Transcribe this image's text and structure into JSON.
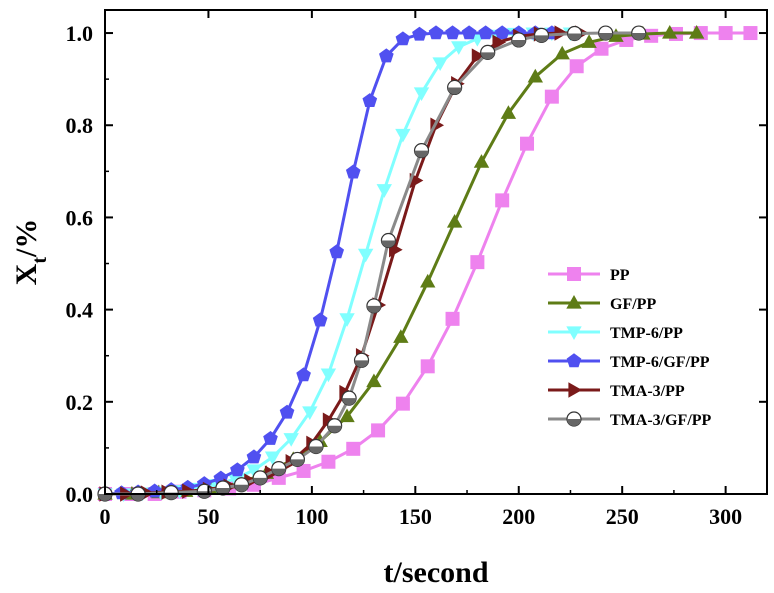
{
  "chart_data": {
    "type": "line",
    "xlabel": "t/second",
    "ylabel_main": "X",
    "ylabel_sub": "t",
    "ylabel_unit": "/%",
    "xlim": [
      0,
      320
    ],
    "ylim": [
      0,
      1.05
    ],
    "xticks": [
      0,
      50,
      100,
      150,
      200,
      250,
      300
    ],
    "xtick_labels": [
      "0",
      "50",
      "100",
      "150",
      "200",
      "250",
      "300"
    ],
    "yticks": [
      0,
      0.2,
      0.4,
      0.6,
      0.8,
      1.0
    ],
    "ytick_labels": [
      "0.0",
      "0.2",
      "0.4",
      "0.6",
      "0.8",
      "1.0"
    ],
    "grid": false,
    "legend_position": "right-bottom",
    "series": [
      {
        "name": "PP",
        "color": "#ee82ee",
        "marker": "square",
        "x": [
          0,
          12,
          24,
          36,
          48,
          60,
          72,
          84,
          96,
          108,
          120,
          132,
          144,
          156,
          168,
          180,
          192,
          204,
          216,
          228,
          240,
          252,
          264,
          276,
          288,
          300,
          312
        ],
        "y": [
          0.0,
          0.0,
          0.0,
          0.005,
          0.008,
          0.012,
          0.02,
          0.035,
          0.05,
          0.07,
          0.098,
          0.138,
          0.196,
          0.277,
          0.38,
          0.503,
          0.637,
          0.76,
          0.862,
          0.928,
          0.966,
          0.985,
          0.994,
          0.998,
          1.0,
          1.0,
          1.0
        ]
      },
      {
        "name": "GF/PP",
        "color": "#5e7c16",
        "marker": "triangle-up",
        "x": [
          0,
          13,
          26,
          39,
          52,
          65,
          78,
          91,
          104,
          117,
          130,
          143,
          156,
          169,
          182,
          195,
          208,
          221,
          234,
          247,
          260,
          273,
          286
        ],
        "y": [
          0.0,
          0.0,
          0.003,
          0.006,
          0.012,
          0.024,
          0.045,
          0.075,
          0.114,
          0.168,
          0.244,
          0.34,
          0.46,
          0.59,
          0.72,
          0.826,
          0.905,
          0.955,
          0.98,
          0.993,
          0.998,
          1.0,
          1.0
        ]
      },
      {
        "name": "TMP-6/PP",
        "color": "#80ffff",
        "marker": "triangle-down",
        "x": [
          0,
          9,
          18,
          27,
          36,
          45,
          54,
          63,
          72,
          81,
          90,
          99,
          108,
          117,
          126,
          135,
          144,
          153,
          162,
          171,
          180,
          189,
          198,
          207,
          216,
          225
        ],
        "y": [
          0.0,
          0.0,
          0.002,
          0.004,
          0.007,
          0.012,
          0.02,
          0.033,
          0.052,
          0.08,
          0.12,
          0.178,
          0.26,
          0.38,
          0.52,
          0.66,
          0.78,
          0.87,
          0.935,
          0.97,
          0.988,
          0.995,
          0.999,
          1.0,
          1.0,
          1.0
        ]
      },
      {
        "name": "TMP-6/GF/PP",
        "color": "#5050f0",
        "marker": "pentagon",
        "x": [
          0,
          8,
          16,
          24,
          32,
          40,
          48,
          56,
          64,
          72,
          80,
          88,
          96,
          104,
          112,
          120,
          128,
          136,
          144,
          152,
          160,
          168,
          176,
          184,
          192,
          200,
          208,
          216
        ],
        "y": [
          0.0,
          0.002,
          0.004,
          0.006,
          0.009,
          0.014,
          0.022,
          0.034,
          0.052,
          0.08,
          0.12,
          0.177,
          0.258,
          0.377,
          0.525,
          0.698,
          0.853,
          0.95,
          0.987,
          0.997,
          1.0,
          1.0,
          1.0,
          1.0,
          1.0,
          1.0,
          1.0,
          1.0
        ]
      },
      {
        "name": "TMA-3/PP",
        "color": "#7a1a1a",
        "marker": "triangle-right",
        "x": [
          0,
          10,
          20,
          30,
          40,
          50,
          60,
          70,
          80,
          90,
          100,
          108,
          116,
          124,
          132,
          140,
          150,
          160,
          170,
          180,
          190,
          200,
          210,
          220,
          230
        ],
        "y": [
          0.0,
          0.0,
          0.002,
          0.004,
          0.006,
          0.01,
          0.017,
          0.028,
          0.045,
          0.07,
          0.11,
          0.16,
          0.22,
          0.3,
          0.41,
          0.53,
          0.68,
          0.8,
          0.89,
          0.95,
          0.98,
          0.993,
          0.998,
          1.0,
          1.0
        ]
      },
      {
        "name": "TMA-3/GF/PP",
        "color": "#8a8a8a",
        "marker": "circle-half",
        "x": [
          0,
          16,
          32,
          48,
          57,
          66,
          75,
          84,
          93,
          102,
          111,
          118,
          124,
          130,
          137,
          153,
          169,
          185,
          200,
          211,
          227,
          242,
          258
        ],
        "y": [
          0.0,
          0.0,
          0.003,
          0.006,
          0.013,
          0.02,
          0.035,
          0.055,
          0.075,
          0.103,
          0.148,
          0.208,
          0.29,
          0.408,
          0.55,
          0.745,
          0.882,
          0.958,
          0.985,
          0.995,
          0.999,
          1.0,
          1.0
        ]
      }
    ]
  }
}
